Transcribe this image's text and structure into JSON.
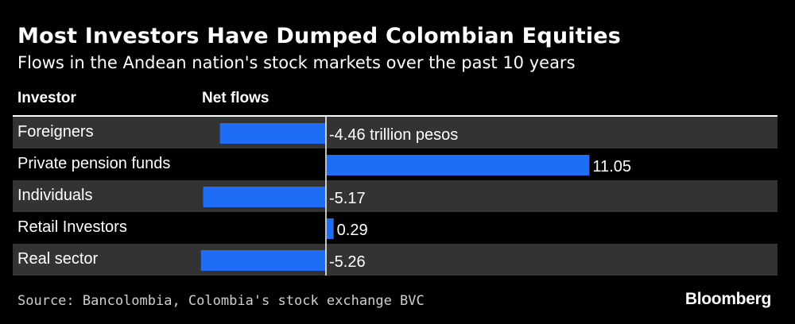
{
  "header": {
    "title": "Most Investors Have Dumped Colombian Equities",
    "subtitle": "Flows in the Andean nation's stock markets over the past 10 years"
  },
  "columns": {
    "investor": "Investor",
    "flows": "Net flows"
  },
  "footer": {
    "source": "Source: Bancolombia, Colombia's stock exchange BVC",
    "brand": "Bloomberg"
  },
  "colors": {
    "bar": "#1f6cf5",
    "row_shade": "#333333",
    "axis": "#ffffff"
  },
  "chart_data": {
    "type": "bar",
    "orientation": "horizontal",
    "categories": [
      "Foreigners",
      "Private pension funds",
      "Individuals",
      "Retail Investors",
      "Real sector"
    ],
    "values": [
      -4.46,
      11.05,
      -5.17,
      0.29,
      -5.26
    ],
    "value_labels": [
      "-4.46 trillion pesos",
      "11.05",
      "-5.17",
      "0.29",
      "-5.26"
    ],
    "unit": "trillion pesos",
    "xlim": [
      -5.26,
      11.05
    ]
  }
}
